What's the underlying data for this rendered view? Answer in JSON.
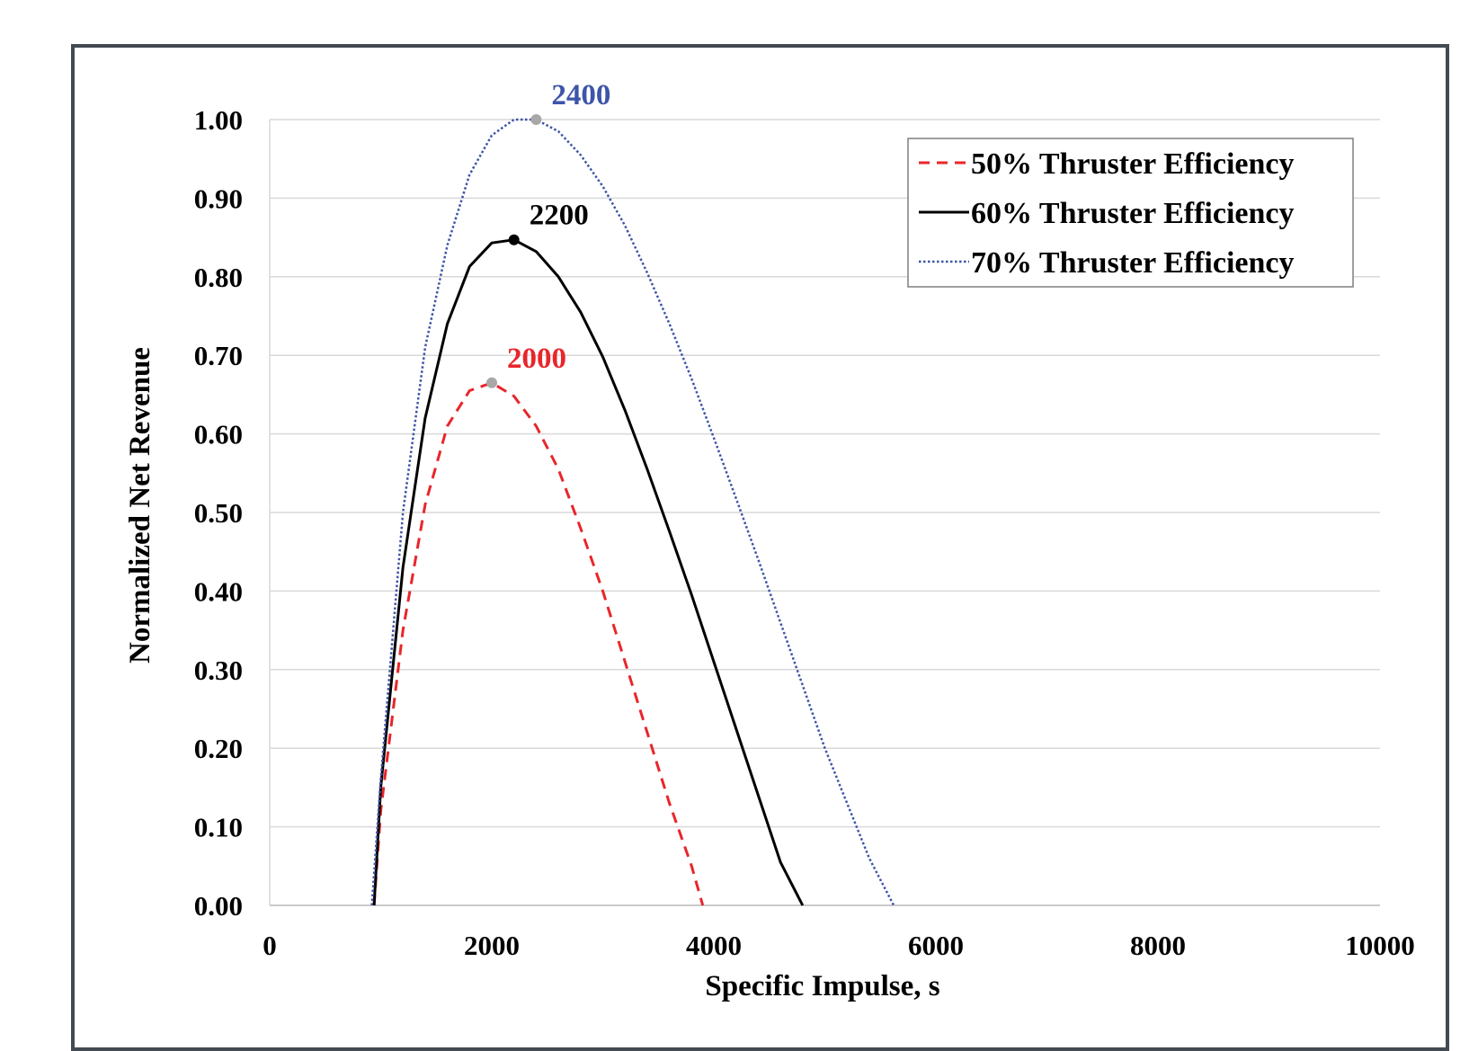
{
  "chart_data": {
    "type": "line",
    "title": "",
    "xlabel": "Specific Impulse, s",
    "ylabel": "Normalized Net Revenue",
    "xlim": [
      0,
      10000
    ],
    "ylim": [
      0,
      1.0
    ],
    "x_ticks": [
      "0",
      "2000",
      "4000",
      "6000",
      "8000",
      "10000"
    ],
    "y_ticks": [
      "0.00",
      "0.10",
      "0.20",
      "0.30",
      "0.40",
      "0.50",
      "0.60",
      "0.70",
      "0.80",
      "0.90",
      "1.00"
    ],
    "grid": "horizontal",
    "legend_position": "top-right",
    "series": [
      {
        "name": "50% Thruster Efficiency",
        "color": "#e8262b",
        "dash": "dashed",
        "x": [
          940,
          1000,
          1200,
          1400,
          1600,
          1800,
          2000,
          2200,
          2400,
          2600,
          2800,
          3000,
          3200,
          3400,
          3600,
          3800,
          3900
        ],
        "y": [
          0.0,
          0.12,
          0.35,
          0.51,
          0.61,
          0.655,
          0.665,
          0.648,
          0.61,
          0.555,
          0.48,
          0.4,
          0.31,
          0.22,
          0.13,
          0.05,
          0.0
        ]
      },
      {
        "name": "60% Thruster Efficiency",
        "color": "#000000",
        "dash": "solid",
        "x": [
          940,
          1000,
          1200,
          1400,
          1600,
          1800,
          2000,
          2200,
          2400,
          2600,
          2800,
          3000,
          3200,
          3400,
          3600,
          3800,
          4000,
          4200,
          4400,
          4600,
          4800
        ],
        "y": [
          0.0,
          0.15,
          0.43,
          0.62,
          0.74,
          0.813,
          0.843,
          0.847,
          0.832,
          0.8,
          0.755,
          0.698,
          0.63,
          0.555,
          0.476,
          0.395,
          0.31,
          0.225,
          0.14,
          0.055,
          0.0
        ]
      },
      {
        "name": "70% Thruster Efficiency",
        "color": "#3d55a8",
        "dash": "dotted",
        "x": [
          920,
          1000,
          1200,
          1400,
          1600,
          1800,
          2000,
          2200,
          2400,
          2600,
          2800,
          3000,
          3200,
          3400,
          3600,
          3800,
          4000,
          4200,
          4400,
          4600,
          4800,
          5000,
          5200,
          5400,
          5620
        ],
        "y": [
          0.0,
          0.16,
          0.5,
          0.71,
          0.84,
          0.93,
          0.98,
          1.0,
          1.0,
          0.985,
          0.955,
          0.915,
          0.865,
          0.805,
          0.74,
          0.67,
          0.595,
          0.518,
          0.44,
          0.36,
          0.28,
          0.2,
          0.13,
          0.06,
          0.0
        ]
      }
    ],
    "annotations": [
      {
        "text": "2000",
        "x": 2000,
        "y": 0.665,
        "color": "#e8262b",
        "marker_color": "#a8a8a8"
      },
      {
        "text": "2200",
        "x": 2200,
        "y": 0.847,
        "color": "#000000",
        "marker_color": "#000000"
      },
      {
        "text": "2400",
        "x": 2400,
        "y": 1.0,
        "color": "#3d55a8",
        "marker_color": "#a8a8a8"
      }
    ]
  }
}
